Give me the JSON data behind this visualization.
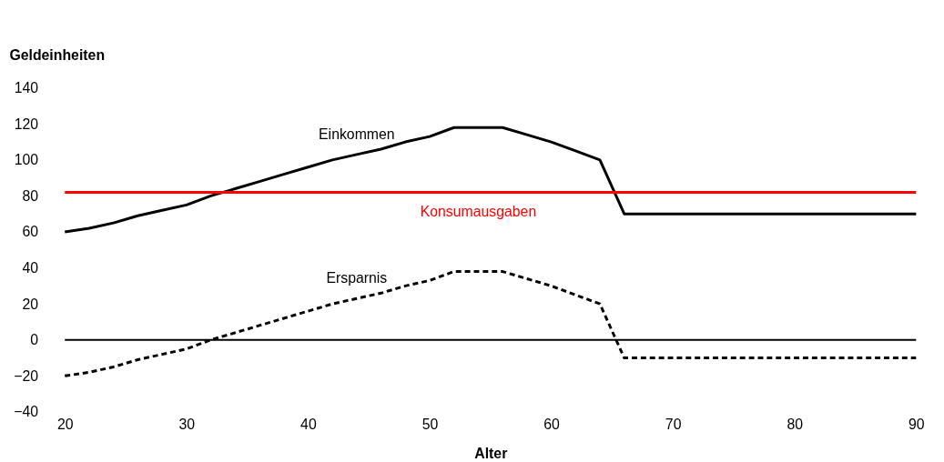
{
  "chart_data": {
    "type": "line",
    "xlabel": "Alter",
    "ylabel": "Geldeinheiten",
    "x": [
      20,
      22,
      24,
      26,
      28,
      30,
      32,
      34,
      36,
      38,
      40,
      42,
      44,
      46,
      48,
      50,
      52,
      54,
      56,
      58,
      60,
      62,
      64,
      66,
      68,
      70,
      72,
      74,
      76,
      78,
      80,
      82,
      84,
      86,
      88,
      90
    ],
    "series": [
      {
        "name": "Einkommen",
        "color": "#000000",
        "line_style": "solid",
        "values": [
          60,
          62,
          65,
          69,
          72,
          75,
          80,
          84,
          88,
          92,
          96,
          100,
          103,
          106,
          110,
          113,
          118,
          118,
          118,
          114,
          110,
          105,
          100,
          70,
          70,
          70,
          70,
          70,
          70,
          70,
          70,
          70,
          70,
          70,
          70,
          70
        ]
      },
      {
        "name": "Konsumausgaben",
        "color": "#ff0000",
        "line_style": "solid",
        "values": [
          82,
          82,
          82,
          82,
          82,
          82,
          82,
          82,
          82,
          82,
          82,
          82,
          82,
          82,
          82,
          82,
          82,
          82,
          82,
          82,
          82,
          82,
          82,
          82,
          82,
          82,
          82,
          82,
          82,
          82,
          82,
          82,
          82,
          82,
          82,
          82
        ]
      },
      {
        "name": "Ersparnis",
        "color": "#000000",
        "line_style": "dashed",
        "values": [
          -20,
          -18,
          -15,
          -11,
          -8,
          -5,
          0,
          4,
          8,
          12,
          16,
          20,
          23,
          26,
          30,
          33,
          38,
          38,
          38,
          34,
          30,
          25,
          20,
          -10,
          -10,
          -10,
          -10,
          -10,
          -10,
          -10,
          -10,
          -10,
          -10,
          -10,
          -10,
          -10
        ]
      }
    ],
    "ref_lines": [
      {
        "axis": "y",
        "value": 0,
        "color": "#000000"
      }
    ],
    "xlim": [
      20,
      90
    ],
    "xticks": [
      20,
      30,
      40,
      50,
      60,
      70,
      80,
      90
    ],
    "ylim": [
      -40,
      140
    ],
    "yticks": [
      -40,
      -20,
      0,
      20,
      40,
      60,
      80,
      100,
      120,
      140
    ],
    "grid": false,
    "marker": "none"
  }
}
